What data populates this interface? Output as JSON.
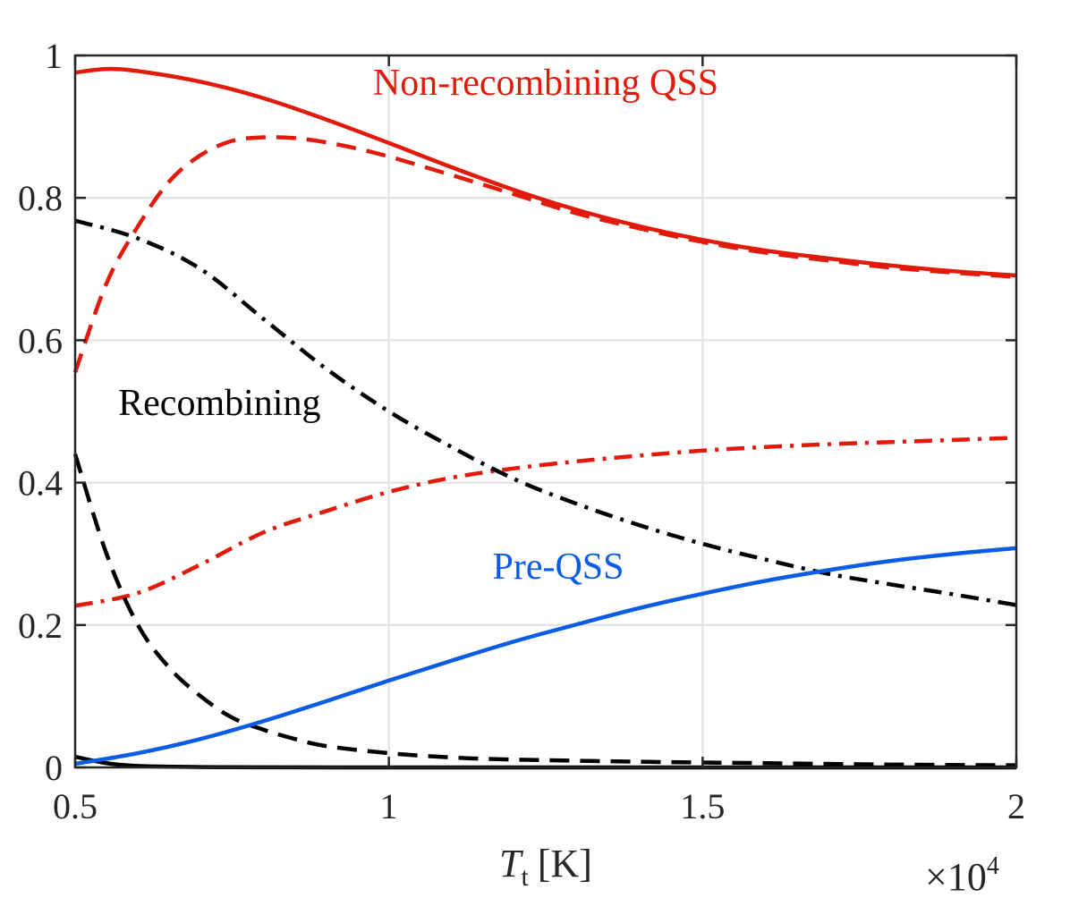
{
  "chart_data": {
    "type": "line",
    "title": "",
    "xlabel": {
      "symbol": "T",
      "subscript": "t",
      "unit": "[K]"
    },
    "ylabel": "",
    "x_multiplier": {
      "base": "×10",
      "exponent": "4"
    },
    "xlim": [
      0.5,
      2
    ],
    "ylim": [
      0,
      1
    ],
    "grid": true,
    "xticks": [
      0.5,
      1,
      1.5,
      2
    ],
    "xtick_labels": [
      "0.5",
      "1",
      "1.5",
      "2"
    ],
    "yticks": [
      0,
      0.2,
      0.4,
      0.6,
      0.8,
      1
    ],
    "ytick_labels": [
      "0",
      "0.2",
      "0.4",
      "0.6",
      "0.8",
      "1"
    ],
    "colors": {
      "red": "#e01b0b",
      "black": "#000000",
      "blue": "#0a5ce6",
      "grid": "#e0e0e0",
      "axis": "#262626"
    },
    "annotations": [
      {
        "text": "Non-recombining QSS",
        "color": "#e01b0b",
        "x": 1.25,
        "y": 0.945
      },
      {
        "text": "Recombining",
        "color": "#000000",
        "x": 0.73,
        "y": 0.495
      },
      {
        "text": "Pre-QSS",
        "color": "#0a5ce6",
        "x": 1.27,
        "y": 0.265
      }
    ],
    "series": [
      {
        "name": "red-solid",
        "color": "#e01b0b",
        "style": "solid",
        "x": [
          0.5,
          0.55,
          0.6,
          0.7,
          0.8,
          0.9,
          1.0,
          1.1,
          1.2,
          1.3,
          1.4,
          1.5,
          1.6,
          1.7,
          1.8,
          1.9,
          2.0
        ],
        "y": [
          0.976,
          0.981,
          0.978,
          0.963,
          0.94,
          0.91,
          0.877,
          0.843,
          0.811,
          0.783,
          0.76,
          0.741,
          0.726,
          0.715,
          0.705,
          0.697,
          0.691
        ]
      },
      {
        "name": "red-dashed",
        "color": "#e01b0b",
        "style": "dashed",
        "x": [
          0.5,
          0.55,
          0.6,
          0.65,
          0.7,
          0.75,
          0.8,
          0.85,
          0.9,
          0.95,
          1.0,
          1.1,
          1.2,
          1.3,
          1.4,
          1.5,
          1.6,
          1.7,
          1.8,
          1.9,
          2.0
        ],
        "y": [
          0.555,
          0.68,
          0.76,
          0.823,
          0.86,
          0.88,
          0.885,
          0.884,
          0.878,
          0.869,
          0.858,
          0.832,
          0.805,
          0.778,
          0.757,
          0.738,
          0.723,
          0.712,
          0.702,
          0.695,
          0.689
        ]
      },
      {
        "name": "red-dashdot",
        "color": "#e01b0b",
        "style": "dashdot",
        "x": [
          0.5,
          0.6,
          0.7,
          0.8,
          0.9,
          1.0,
          1.1,
          1.2,
          1.3,
          1.4,
          1.5,
          1.6,
          1.7,
          1.8,
          1.9,
          2.0
        ],
        "y": [
          0.227,
          0.245,
          0.285,
          0.33,
          0.36,
          0.387,
          0.407,
          0.42,
          0.43,
          0.438,
          0.445,
          0.45,
          0.454,
          0.457,
          0.46,
          0.463
        ]
      },
      {
        "name": "black-dashdot",
        "color": "#000000",
        "style": "dashdot",
        "x": [
          0.5,
          0.6,
          0.7,
          0.8,
          0.9,
          1.0,
          1.1,
          1.2,
          1.3,
          1.4,
          1.5,
          1.6,
          1.7,
          1.8,
          1.9,
          2.0
        ],
        "y": [
          0.768,
          0.743,
          0.7,
          0.63,
          0.56,
          0.5,
          0.45,
          0.405,
          0.37,
          0.34,
          0.314,
          0.292,
          0.272,
          0.257,
          0.243,
          0.228
        ]
      },
      {
        "name": "black-dashed",
        "color": "#000000",
        "style": "dashed",
        "x": [
          0.5,
          0.55,
          0.6,
          0.65,
          0.7,
          0.75,
          0.8,
          0.85,
          0.9,
          1.0,
          1.1,
          1.2,
          1.4,
          1.6,
          1.8,
          2.0
        ],
        "y": [
          0.44,
          0.3,
          0.2,
          0.14,
          0.1,
          0.07,
          0.053,
          0.04,
          0.03,
          0.02,
          0.014,
          0.011,
          0.008,
          0.006,
          0.004,
          0.003
        ]
      },
      {
        "name": "black-solid",
        "color": "#000000",
        "style": "solid",
        "x": [
          0.5,
          0.55,
          0.6,
          0.7,
          0.8,
          1.0,
          1.5,
          2.0
        ],
        "y": [
          0.015,
          0.006,
          0.002,
          0.0005,
          0.0002,
          0.0,
          0.0,
          0.0
        ]
      },
      {
        "name": "blue-solid",
        "color": "#0a5ce6",
        "style": "solid",
        "x": [
          0.5,
          0.6,
          0.7,
          0.8,
          0.9,
          1.0,
          1.1,
          1.2,
          1.3,
          1.4,
          1.5,
          1.6,
          1.7,
          1.8,
          1.9,
          2.0
        ],
        "y": [
          0.005,
          0.02,
          0.04,
          0.065,
          0.093,
          0.122,
          0.15,
          0.177,
          0.201,
          0.224,
          0.244,
          0.262,
          0.277,
          0.29,
          0.3,
          0.308
        ]
      }
    ]
  }
}
